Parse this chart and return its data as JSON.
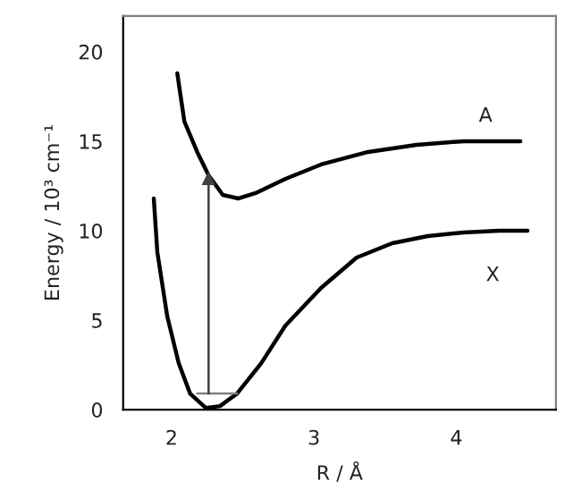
{
  "chart_data": {
    "type": "line",
    "xlabel": "R / Å",
    "ylabel": "Energy / 10³ cm⁻¹",
    "xlim": [
      1.66,
      4.7
    ],
    "ylim": [
      0,
      22
    ],
    "xticks": [
      2,
      3,
      4
    ],
    "yticks": [
      0,
      5,
      10,
      15,
      20
    ],
    "grid": false,
    "legend": false,
    "series": [
      {
        "name": "X",
        "color": "#000000",
        "x": [
          1.875,
          1.9,
          1.97,
          2.05,
          2.13,
          2.24,
          2.34,
          2.46,
          2.63,
          2.8,
          3.05,
          3.3,
          3.55,
          3.8,
          4.05,
          4.3,
          4.5
        ],
        "values": [
          11.8,
          8.8,
          5.2,
          2.6,
          0.9,
          0.1,
          0.2,
          0.9,
          2.6,
          4.7,
          6.8,
          8.5,
          9.3,
          9.7,
          9.9,
          10.0,
          10.0
        ]
      },
      {
        "name": "A",
        "color": "#000000",
        "x": [
          2.04,
          2.09,
          2.18,
          2.26,
          2.36,
          2.47,
          2.59,
          2.8,
          3.05,
          3.38,
          3.72,
          4.05,
          4.45
        ],
        "values": [
          18.8,
          16.1,
          14.4,
          13.1,
          12.0,
          11.8,
          12.1,
          12.9,
          13.7,
          14.4,
          14.8,
          15.0,
          15.0
        ]
      },
      {
        "color": "#808080",
        "x": [
          2.18,
          2.46
        ],
        "values": [
          0.9,
          0.9
        ]
      },
      {
        "color": "#404040",
        "marker": "triangle",
        "x": [
          2.26,
          2.26
        ],
        "values": [
          0.9,
          12.9
        ]
      }
    ]
  }
}
